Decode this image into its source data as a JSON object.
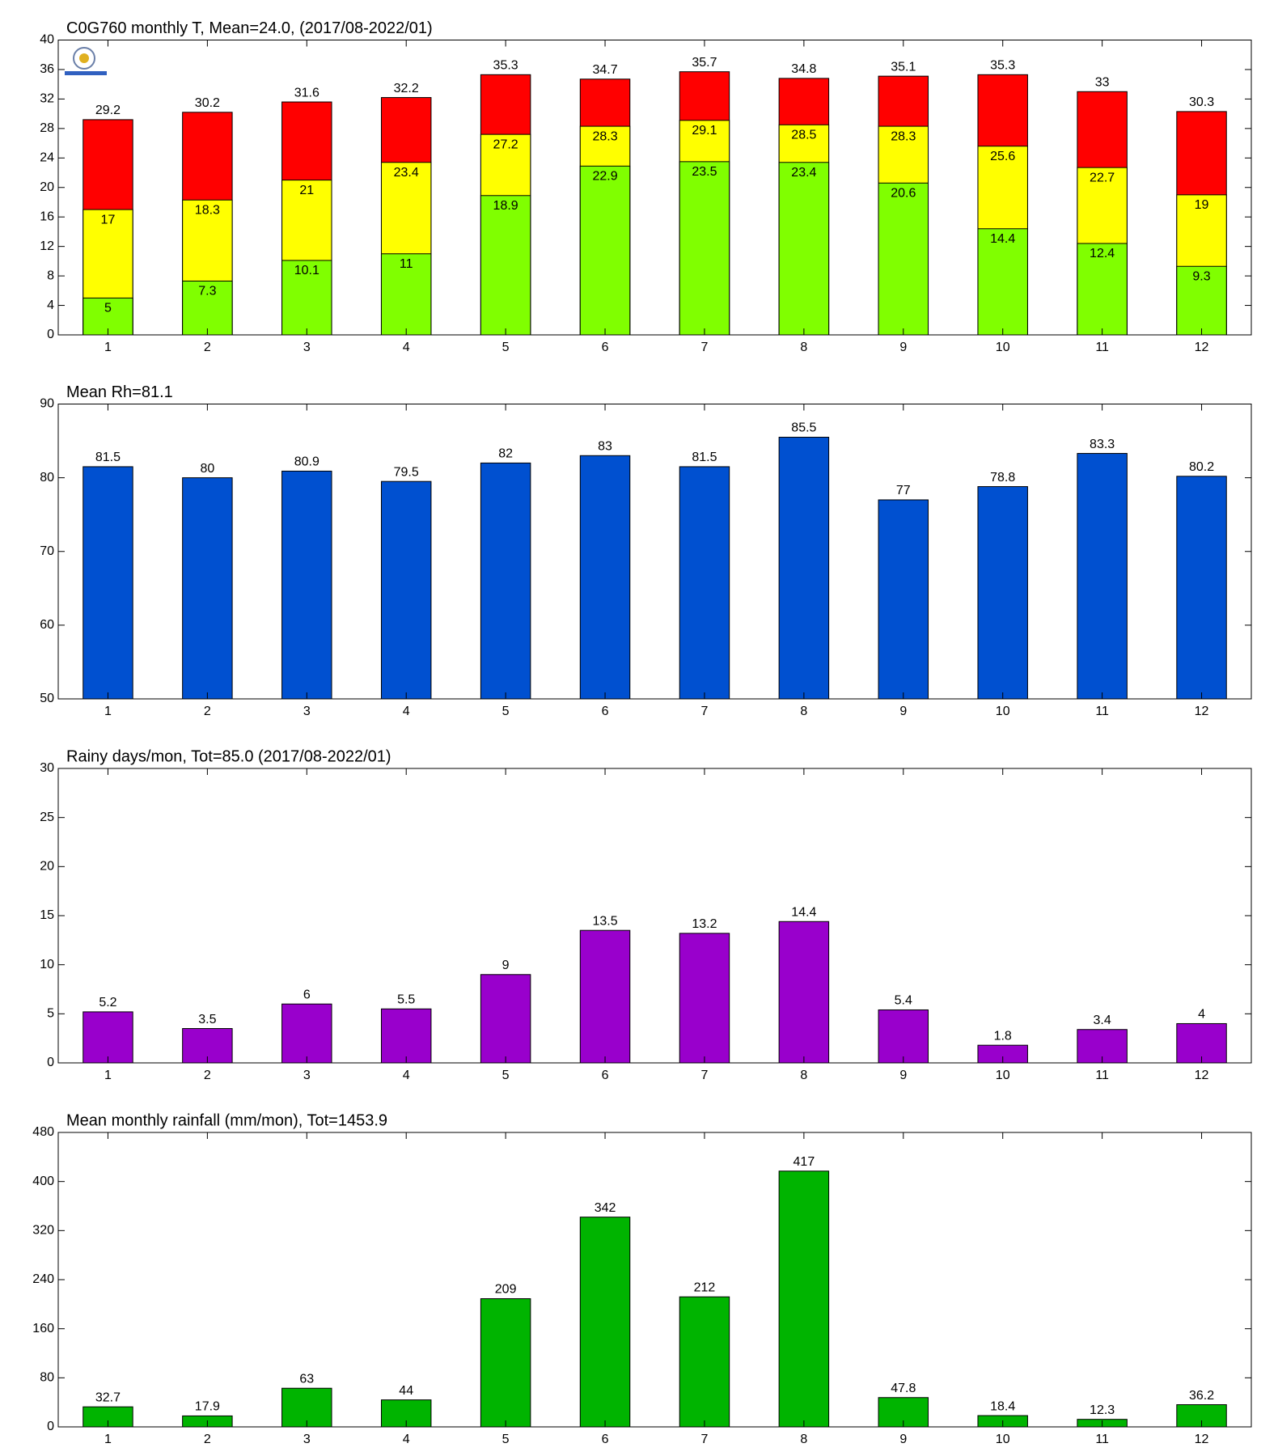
{
  "chart_data": [
    {
      "type": "bar",
      "title": "C0G760 monthly T, Mean=24.0, (2017/08-2022/01)",
      "categories": [
        "1",
        "2",
        "3",
        "4",
        "5",
        "6",
        "7",
        "8",
        "9",
        "10",
        "11",
        "12"
      ],
      "series": [
        {
          "color": "#ff0000",
          "values": [
            29.2,
            30.2,
            31.6,
            32.2,
            35.3,
            34.7,
            35.7,
            34.8,
            35.1,
            35.3,
            33,
            30.3
          ]
        },
        {
          "color": "#ffff00",
          "values": [
            17,
            18.3,
            21,
            23.4,
            27.2,
            28.3,
            29.1,
            28.5,
            28.3,
            25.6,
            22.7,
            19
          ]
        },
        {
          "color": "#80ff00",
          "values": [
            5,
            7.3,
            10.1,
            11,
            18.9,
            22.9,
            23.5,
            23.4,
            20.6,
            14.4,
            12.4,
            9.3
          ]
        }
      ],
      "ylim": [
        0,
        40
      ],
      "yticks": [
        0,
        4,
        8,
        12,
        16,
        20,
        24,
        28,
        32,
        36,
        40
      ]
    },
    {
      "type": "bar",
      "title": "Mean Rh=81.1",
      "categories": [
        "1",
        "2",
        "3",
        "4",
        "5",
        "6",
        "7",
        "8",
        "9",
        "10",
        "11",
        "12"
      ],
      "series": [
        {
          "color": "#0050d0",
          "values": [
            81.5,
            80,
            80.9,
            79.5,
            82,
            83,
            81.5,
            85.5,
            77,
            78.8,
            83.3,
            80.2
          ]
        }
      ],
      "ylim": [
        50,
        90
      ],
      "yticks": [
        50,
        60,
        70,
        80,
        90
      ]
    },
    {
      "type": "bar",
      "title": "Rainy days/mon, Tot=85.0 (2017/08-2022/01)",
      "categories": [
        "1",
        "2",
        "3",
        "4",
        "5",
        "6",
        "7",
        "8",
        "9",
        "10",
        "11",
        "12"
      ],
      "series": [
        {
          "color": "#9900cc",
          "values": [
            5.2,
            3.5,
            6,
            5.5,
            9,
            13.5,
            13.2,
            14.4,
            5.4,
            1.8,
            3.4,
            4
          ]
        }
      ],
      "ylim": [
        0,
        30
      ],
      "yticks": [
        0,
        5,
        10,
        15,
        20,
        25,
        30
      ]
    },
    {
      "type": "bar",
      "title": "Mean monthly rainfall (mm/mon), Tot=1453.9",
      "categories": [
        "1",
        "2",
        "3",
        "4",
        "5",
        "6",
        "7",
        "8",
        "9",
        "10",
        "11",
        "12"
      ],
      "series": [
        {
          "color": "#00b400",
          "values": [
            32.7,
            17.9,
            63,
            44,
            209,
            342,
            212,
            417,
            47.8,
            18.4,
            12.3,
            36.2
          ]
        }
      ],
      "ylim": [
        0,
        480
      ],
      "yticks": [
        0,
        80,
        160,
        240,
        320,
        400,
        480
      ]
    }
  ]
}
